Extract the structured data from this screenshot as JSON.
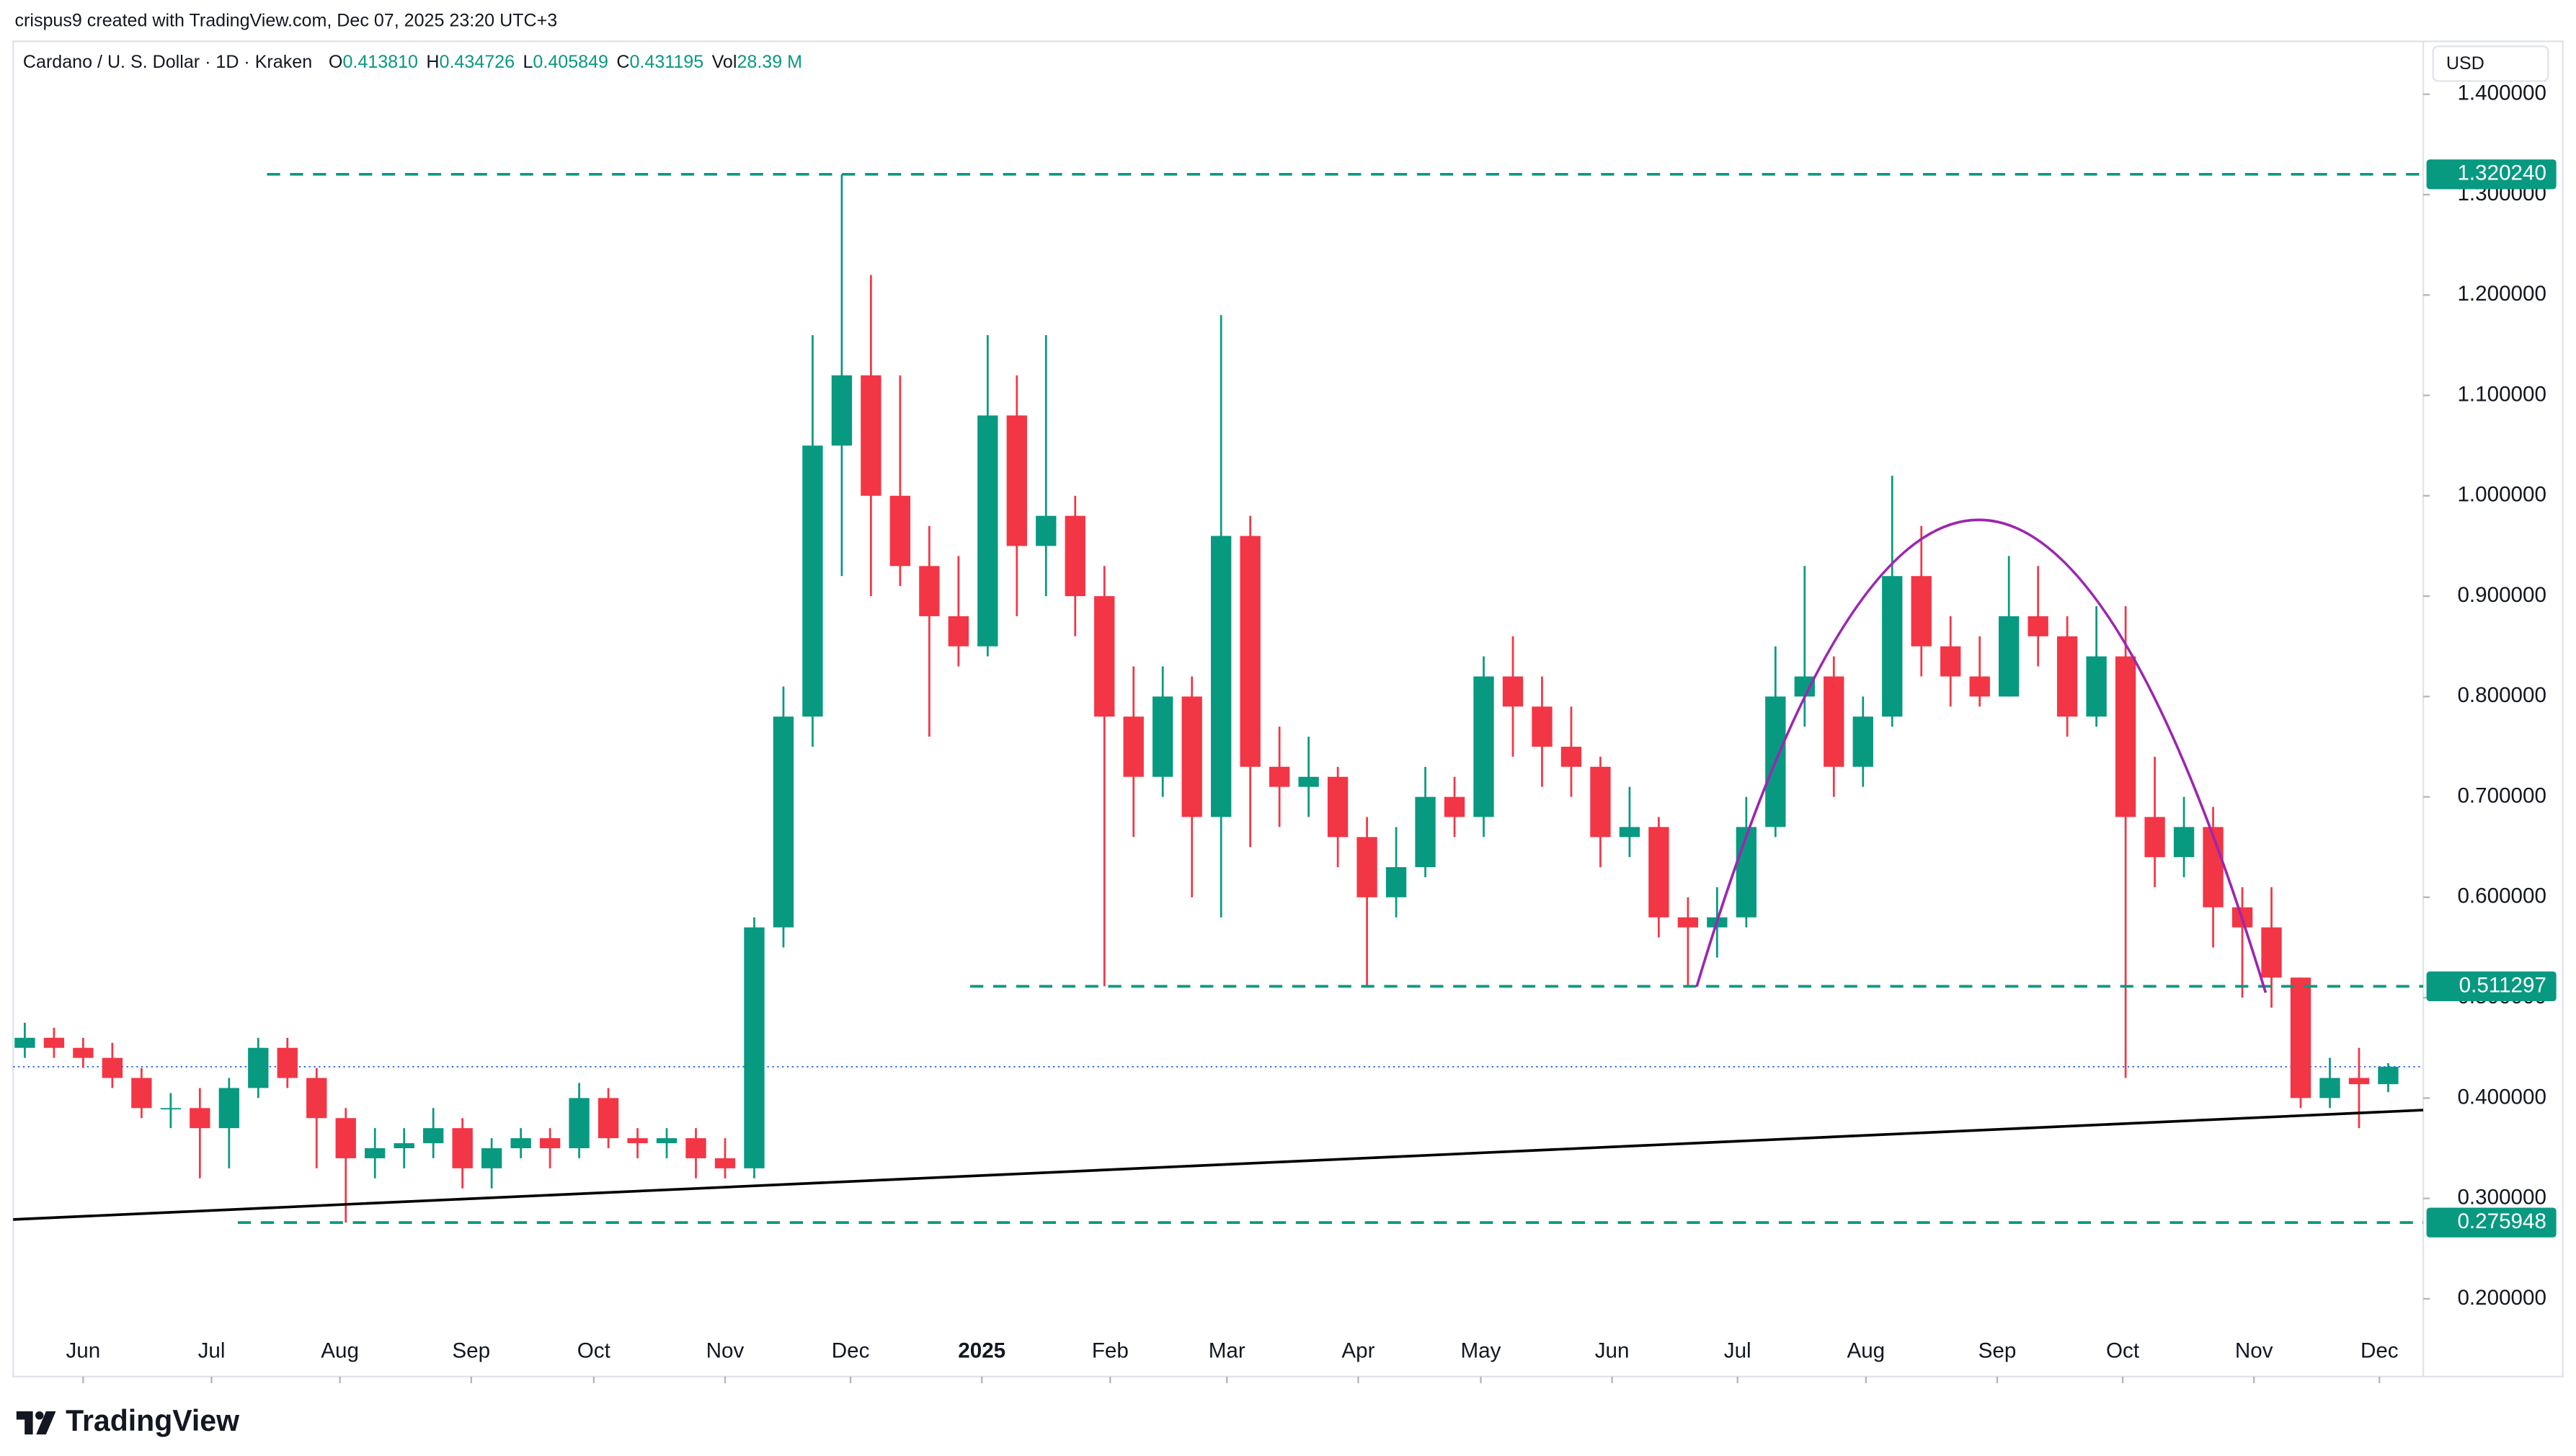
{
  "header": {
    "caption": "crispus9 created with TradingView.com, Dec 07, 2025 23:20 UTC+3",
    "logo": "TradingView"
  },
  "chart_data": {
    "type": "candlestick",
    "title": "Cardano / U. S. Dollar · 1D · Kraken",
    "currency": "USD",
    "legend": [
      {
        "key": "O",
        "value": 0.41381,
        "label": "0.413810"
      },
      {
        "key": "H",
        "value": 0.434726,
        "label": "0.434726"
      },
      {
        "key": "L",
        "value": 0.405849,
        "label": "0.405849"
      },
      {
        "key": "C",
        "value": 0.431195,
        "label": "0.431195"
      },
      {
        "key": "Vol",
        "value": 28390000,
        "label": "28.39 M"
      }
    ],
    "categories": [
      null,
      null,
      null,
      null,
      null,
      null,
      null,
      null,
      null,
      null,
      null,
      null,
      null,
      null,
      null,
      null,
      null,
      null,
      null,
      null,
      null,
      null,
      null,
      null,
      null,
      null,
      null,
      null,
      null,
      null,
      null,
      null,
      null,
      null,
      null,
      null,
      null,
      null,
      null,
      null,
      null,
      null,
      null,
      null,
      null,
      null,
      null,
      null,
      null,
      null,
      null,
      null,
      null,
      null,
      null,
      null,
      null,
      null,
      null,
      null,
      null,
      null,
      null,
      null,
      null,
      null,
      null,
      null,
      null,
      null,
      null,
      null,
      null,
      null,
      null,
      null,
      null,
      null,
      null,
      null,
      null,
      null
    ],
    "open": [
      0.45,
      0.46,
      0.45,
      0.44,
      0.42,
      0.39,
      0.39,
      0.37,
      0.41,
      0.45,
      0.42,
      0.38,
      0.34,
      0.35,
      0.355,
      0.37,
      0.33,
      0.35,
      0.36,
      0.35,
      0.4,
      0.36,
      0.355,
      0.36,
      0.34,
      0.33,
      0.57,
      0.78,
      1.05,
      1.12,
      1.0,
      0.93,
      0.88,
      0.85,
      1.08,
      0.95,
      0.98,
      0.9,
      0.78,
      0.72,
      0.8,
      0.68,
      0.96,
      0.73,
      0.71,
      0.72,
      0.66,
      0.6,
      0.63,
      0.7,
      0.68,
      0.82,
      0.79,
      0.75,
      0.73,
      0.66,
      0.67,
      0.58,
      0.57,
      0.58,
      0.67,
      0.8,
      0.82,
      0.73,
      0.78,
      0.92,
      0.85,
      0.82,
      0.8,
      0.88,
      0.86,
      0.78,
      0.84,
      0.68,
      0.64,
      0.67,
      0.59,
      0.57,
      0.52,
      0.4,
      0.42,
      0.41381
    ],
    "high": [
      0.475,
      0.47,
      0.46,
      0.455,
      0.43,
      0.405,
      0.41,
      0.42,
      0.46,
      0.46,
      0.43,
      0.39,
      0.37,
      0.37,
      0.39,
      0.38,
      0.36,
      0.37,
      0.37,
      0.415,
      0.41,
      0.37,
      0.37,
      0.37,
      0.36,
      0.58,
      0.81,
      1.16,
      1.32024,
      1.22,
      1.12,
      0.97,
      0.94,
      1.16,
      1.12,
      1.16,
      1.0,
      0.93,
      0.83,
      0.83,
      0.82,
      1.18,
      0.98,
      0.77,
      0.76,
      0.73,
      0.68,
      0.67,
      0.73,
      0.72,
      0.84,
      0.86,
      0.82,
      0.79,
      0.74,
      0.71,
      0.68,
      0.6,
      0.61,
      0.7,
      0.85,
      0.93,
      0.84,
      0.8,
      1.02,
      0.97,
      0.88,
      0.86,
      0.94,
      0.93,
      0.88,
      0.89,
      0.89,
      0.74,
      0.7,
      0.69,
      0.61,
      0.61,
      0.52,
      0.44,
      0.45,
      0.434726
    ],
    "low": [
      0.44,
      0.44,
      0.43,
      0.41,
      0.38,
      0.37,
      0.32,
      0.33,
      0.4,
      0.41,
      0.33,
      0.275948,
      0.32,
      0.33,
      0.34,
      0.31,
      0.31,
      0.34,
      0.33,
      0.34,
      0.35,
      0.34,
      0.34,
      0.32,
      0.32,
      0.32,
      0.55,
      0.75,
      0.92,
      0.9,
      0.91,
      0.76,
      0.83,
      0.84,
      0.88,
      0.9,
      0.86,
      0.511297,
      0.66,
      0.7,
      0.6,
      0.58,
      0.65,
      0.67,
      0.68,
      0.63,
      0.511297,
      0.58,
      0.62,
      0.66,
      0.66,
      0.74,
      0.71,
      0.7,
      0.63,
      0.64,
      0.56,
      0.511297,
      0.54,
      0.57,
      0.66,
      0.77,
      0.7,
      0.71,
      0.77,
      0.82,
      0.79,
      0.79,
      0.8,
      0.83,
      0.76,
      0.77,
      0.42,
      0.61,
      0.62,
      0.55,
      0.5,
      0.49,
      0.39,
      0.39,
      0.37,
      0.405849
    ],
    "close": [
      0.46,
      0.45,
      0.44,
      0.42,
      0.39,
      0.39,
      0.37,
      0.41,
      0.45,
      0.42,
      0.38,
      0.34,
      0.35,
      0.355,
      0.37,
      0.33,
      0.35,
      0.36,
      0.35,
      0.4,
      0.36,
      0.355,
      0.36,
      0.34,
      0.33,
      0.57,
      0.78,
      1.05,
      1.12,
      1.0,
      0.93,
      0.88,
      0.85,
      1.08,
      0.95,
      0.98,
      0.9,
      0.78,
      0.72,
      0.8,
      0.68,
      0.96,
      0.73,
      0.71,
      0.72,
      0.66,
      0.6,
      0.63,
      0.7,
      0.68,
      0.82,
      0.79,
      0.75,
      0.73,
      0.66,
      0.67,
      0.58,
      0.57,
      0.58,
      0.67,
      0.8,
      0.82,
      0.73,
      0.78,
      0.92,
      0.85,
      0.82,
      0.8,
      0.88,
      0.86,
      0.78,
      0.84,
      0.68,
      0.64,
      0.67,
      0.59,
      0.57,
      0.52,
      0.4,
      0.42,
      0.41381,
      0.431195
    ],
    "up_color": "#089981",
    "down_color": "#f23645",
    "xlim": [
      -0.4,
      82.2
    ],
    "xticks": [
      {
        "value": 2.0,
        "label": "Jun"
      },
      {
        "value": 6.4,
        "label": "Jul"
      },
      {
        "value": 10.8,
        "label": "Aug"
      },
      {
        "value": 15.3,
        "label": "Sep"
      },
      {
        "value": 19.5,
        "label": "Oct"
      },
      {
        "value": 24.0,
        "label": "Nov"
      },
      {
        "value": 28.3,
        "label": "Dec"
      },
      {
        "value": 32.8,
        "label": "2025"
      },
      {
        "value": 37.2,
        "label": "Feb"
      },
      {
        "value": 41.2,
        "label": "Mar"
      },
      {
        "value": 45.7,
        "label": "Apr"
      },
      {
        "value": 49.9,
        "label": "May"
      },
      {
        "value": 54.4,
        "label": "Jun"
      },
      {
        "value": 58.7,
        "label": "Jul"
      },
      {
        "value": 63.1,
        "label": "Aug"
      },
      {
        "value": 67.6,
        "label": "Sep"
      },
      {
        "value": 71.9,
        "label": "Oct"
      },
      {
        "value": 76.4,
        "label": "Nov"
      },
      {
        "value": 80.7,
        "label": "Dec"
      }
    ],
    "ylim": [
      0.1225,
      1.4527
    ],
    "yticks": [
      {
        "value": 0.2,
        "label": "0.200000"
      },
      {
        "value": 0.3,
        "label": "0.300000"
      },
      {
        "value": 0.4,
        "label": "0.400000"
      },
      {
        "value": 0.5,
        "label": "0.500000"
      },
      {
        "value": 0.6,
        "label": "0.600000"
      },
      {
        "value": 0.7,
        "label": "0.700000"
      },
      {
        "value": 0.8,
        "label": "0.800000"
      },
      {
        "value": 0.9,
        "label": "0.900000"
      },
      {
        "value": 1.0,
        "label": "1.000000"
      },
      {
        "value": 1.1,
        "label": "1.100000"
      },
      {
        "value": 1.2,
        "label": "1.200000"
      },
      {
        "value": 1.3,
        "label": "1.300000"
      },
      {
        "value": 1.4,
        "label": "1.400000"
      }
    ],
    "levels": [
      {
        "value": 1.32024,
        "label": "1.320240",
        "x_start": 8.3
      },
      {
        "value": 0.511297,
        "label": "0.511297",
        "x_start": 32.4
      },
      {
        "value": 0.275948,
        "label": "0.275948",
        "x_start": 7.3
      }
    ],
    "level_color": "#089981",
    "trendline": {
      "x": [
        -0.4,
        82.2
      ],
      "y": [
        0.279,
        0.388
      ],
      "color": "#000000"
    },
    "arc": {
      "x": [
        57.3,
        67.0,
        76.8
      ],
      "y": [
        0.511,
        0.976,
        0.505
      ],
      "color": "#9c27b0"
    }
  }
}
